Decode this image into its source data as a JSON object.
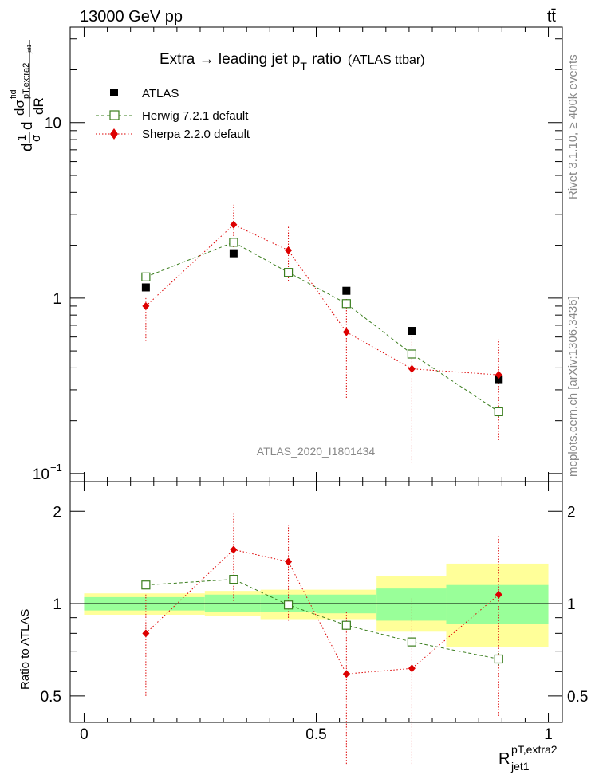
{
  "header": {
    "left": "13000 GeV pp",
    "right": "tt̄"
  },
  "title": {
    "main": "Extra → leading jet p",
    "sub": "T",
    "main2": "ratio",
    "tag": "(ATLAS ttbar)"
  },
  "side_labels": {
    "rivet": "Rivet 3.1.10, ≥ 400k events",
    "mcplots": "mcplots.cern.ch [arXiv:1306.3436]"
  },
  "watermark": "ATLAS_2020_I1801434",
  "ylabel_top": {
    "pre": "d",
    "frac1_num": "1",
    "frac1_den": "σ",
    "d": "d",
    "frac2_num": "dσ",
    "frac2_num_sup": "fid",
    "frac2_num_sub": "pT,extra2",
    "frac2_num_sub2": "jet1",
    "frac2_den": "dR"
  },
  "ylabel_bottom": "Ratio to ATLAS",
  "xlabel": {
    "main": "R",
    "sup": "pT,extra2",
    "sub": "jet1"
  },
  "colors": {
    "atlas": "#000000",
    "herwig": "#3a7d1d",
    "sherpa": "#dd0000",
    "band_inner": "#99ff99",
    "band_outer": "#ffff99"
  },
  "chart_data": {
    "type": "scatter",
    "top_panel": {
      "yscale": "log",
      "ylim": [
        0.09,
        35
      ],
      "yticks_major": [
        {
          "v": 0.1,
          "label": "10",
          "sup": "−1"
        },
        {
          "v": 1,
          "label": "1",
          "sup": ""
        },
        {
          "v": 10,
          "label": "10",
          "sup": ""
        }
      ]
    },
    "bottom_panel": {
      "yscale": "log",
      "ylim": [
        0.41,
        2.5
      ],
      "yticks_major": [
        {
          "v": 0.5,
          "label": "0.5"
        },
        {
          "v": 1,
          "label": "1"
        },
        {
          "v": 2,
          "label": "2"
        }
      ]
    },
    "xlim": [
      -0.03,
      1.03
    ],
    "xticks": [
      {
        "v": 0,
        "label": "0"
      },
      {
        "v": 0.5,
        "label": "0.5"
      },
      {
        "v": 1,
        "label": "1"
      }
    ],
    "x": [
      0.133,
      0.322,
      0.44,
      0.565,
      0.706,
      0.893
    ],
    "bins": [
      [
        0,
        0.26
      ],
      [
        0.26,
        0.38
      ],
      [
        0.38,
        0.5
      ],
      [
        0.5,
        0.63
      ],
      [
        0.63,
        0.78
      ],
      [
        0.78,
        1.0
      ]
    ],
    "legend": [
      "ATLAS",
      "Herwig 7.2.1 default",
      "Sherpa 2.2.0 default"
    ],
    "series": [
      {
        "name": "ATLAS",
        "values": [
          1.15,
          1.8,
          1.4,
          1.1,
          0.65,
          0.345
        ]
      },
      {
        "name": "Herwig 7.2.1 default",
        "values": [
          1.32,
          2.08,
          1.4,
          0.93,
          0.48,
          0.225
        ],
        "err_lo": [
          1.3,
          2.0,
          1.37,
          0.91,
          0.46,
          0.21
        ],
        "err_hi": [
          1.34,
          2.16,
          1.43,
          0.95,
          0.5,
          0.24
        ]
      },
      {
        "name": "Sherpa 2.2.0 default",
        "values": [
          0.9,
          2.62,
          1.87,
          0.64,
          0.395,
          0.365
        ],
        "err_lo": [
          0.57,
          1.95,
          1.25,
          0.27,
          0.115,
          0.155
        ],
        "err_hi": [
          1.0,
          3.4,
          2.55,
          1.0,
          0.66,
          0.58
        ]
      }
    ],
    "ratio": {
      "herwig": [
        1.15,
        1.2,
        0.99,
        0.85,
        0.75,
        0.66
      ],
      "herwig_lo": [
        1.13,
        1.16,
        0.97,
        0.83,
        0.73,
        0.63
      ],
      "herwig_hi": [
        1.17,
        1.24,
        1.01,
        0.87,
        0.77,
        0.69
      ],
      "sherpa": [
        0.8,
        1.5,
        1.37,
        0.59,
        0.615,
        1.07
      ],
      "sherpa_lo": [
        0.5,
        1.02,
        0.88,
        0.3,
        0.3,
        0.43
      ],
      "sherpa_hi": [
        1.07,
        1.96,
        1.8,
        0.95,
        1.04,
        1.67
      ],
      "band_inner": [
        [
          0.95,
          1.05
        ],
        [
          0.94,
          1.07
        ],
        [
          0.94,
          1.07
        ],
        [
          0.93,
          1.07
        ],
        [
          0.88,
          1.12
        ],
        [
          0.86,
          1.15
        ]
      ],
      "band_outer": [
        [
          0.92,
          1.08
        ],
        [
          0.91,
          1.1
        ],
        [
          0.89,
          1.11
        ],
        [
          0.89,
          1.11
        ],
        [
          0.81,
          1.23
        ],
        [
          0.72,
          1.35
        ]
      ]
    }
  }
}
